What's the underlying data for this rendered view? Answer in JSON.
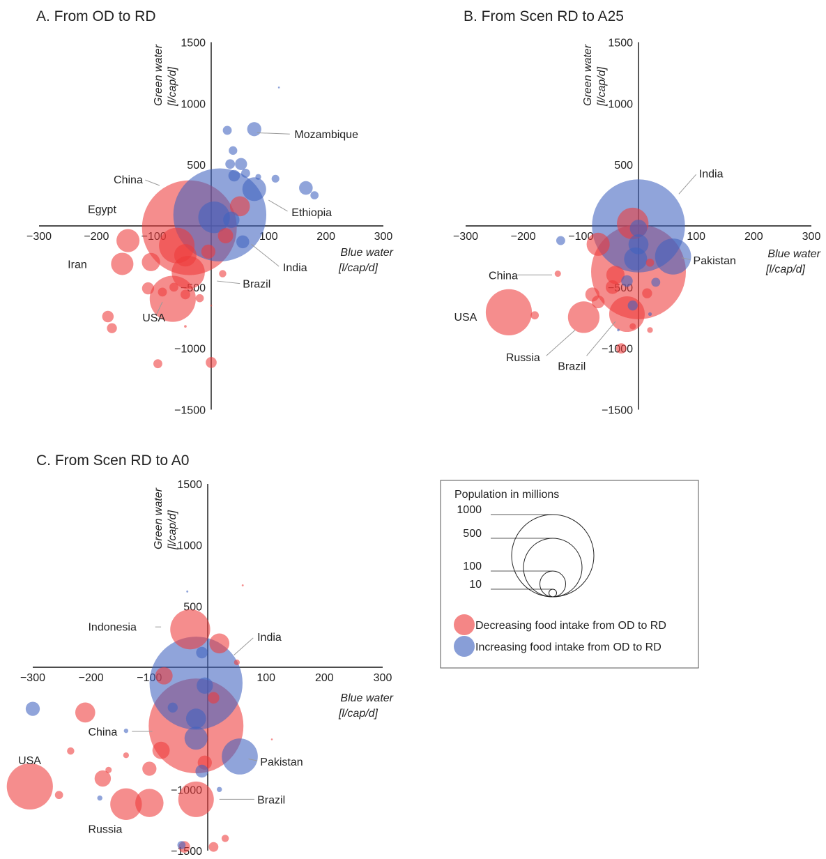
{
  "colors": {
    "decreasing": "#ee3b3b",
    "increasing": "#3f63bf",
    "axis": "#111111",
    "leader": "#9a9a9a"
  },
  "legend": {
    "title": "Population in millions",
    "sizes": [
      {
        "label": "1000",
        "value": 1000
      },
      {
        "label": "500",
        "value": 500
      },
      {
        "label": "100",
        "value": 100
      },
      {
        "label": "10",
        "value": 10
      }
    ],
    "decreasing_label": "Decreasing food intake from OD to RD",
    "increasing_label": "Increasing food intake from OD to RD"
  },
  "chart_data": [
    {
      "type": "scatter",
      "subtype": "bubble",
      "title": "A. From OD to RD",
      "xlabel": [
        "Blue water",
        "[l/cap/d]"
      ],
      "ylabel": [
        "Green water",
        "[l/cap/d]"
      ],
      "xlim": [
        -300,
        300
      ],
      "ylim": [
        -1500,
        1500
      ],
      "xticks": [
        -300,
        -200,
        -100,
        100,
        200,
        300
      ],
      "yticks": [
        1500,
        1000,
        500,
        -500,
        -1000,
        -1500
      ],
      "size_variable": "Population in millions",
      "points": [
        {
          "x": 15,
          "y": 90,
          "pop": 1300,
          "c": "increasing"
        },
        {
          "x": -38,
          "y": -15,
          "pop": 1350,
          "c": "decreasing"
        },
        {
          "x": -60,
          "y": -160,
          "pop": 190,
          "c": "decreasing"
        },
        {
          "x": -45,
          "y": -240,
          "pop": 75,
          "c": "decreasing"
        },
        {
          "x": -40,
          "y": -380,
          "pop": 165,
          "c": "decreasing"
        },
        {
          "x": -155,
          "y": -310,
          "pop": 75,
          "c": "decreasing"
        },
        {
          "x": -105,
          "y": -295,
          "pop": 50,
          "c": "decreasing"
        },
        {
          "x": -145,
          "y": -120,
          "pop": 80,
          "c": "decreasing"
        },
        {
          "x": -67,
          "y": -595,
          "pop": 320,
          "c": "decreasing"
        },
        {
          "x": -110,
          "y": -510,
          "pop": 22,
          "c": "decreasing"
        },
        {
          "x": -85,
          "y": -540,
          "pop": 12,
          "c": "decreasing"
        },
        {
          "x": -180,
          "y": -740,
          "pop": 20,
          "c": "decreasing"
        },
        {
          "x": -173,
          "y": -835,
          "pop": 15,
          "c": "decreasing"
        },
        {
          "x": -93,
          "y": -1125,
          "pop": 12,
          "c": "decreasing"
        },
        {
          "x": 0,
          "y": -1115,
          "pop": 18,
          "c": "decreasing"
        },
        {
          "x": -20,
          "y": -590,
          "pop": 10,
          "c": "decreasing"
        },
        {
          "x": -45,
          "y": -560,
          "pop": 14,
          "c": "decreasing"
        },
        {
          "x": -65,
          "y": -500,
          "pop": 12,
          "c": "decreasing"
        },
        {
          "x": -5,
          "y": -210,
          "pop": 30,
          "c": "decreasing"
        },
        {
          "x": 25,
          "y": -80,
          "pop": 35,
          "c": "decreasing"
        },
        {
          "x": 50,
          "y": 160,
          "pop": 60,
          "c": "decreasing"
        },
        {
          "x": 55,
          "y": -130,
          "pop": 25,
          "c": "increasing"
        },
        {
          "x": 35,
          "y": 50,
          "pop": 40,
          "c": "increasing"
        },
        {
          "x": 5,
          "y": 70,
          "pop": 150,
          "c": "increasing"
        },
        {
          "x": 75,
          "y": 300,
          "pop": 85,
          "c": "increasing"
        },
        {
          "x": 75,
          "y": 790,
          "pop": 30,
          "c": "increasing"
        },
        {
          "x": 28,
          "y": 780,
          "pop": 12,
          "c": "increasing"
        },
        {
          "x": 38,
          "y": 615,
          "pop": 11,
          "c": "increasing"
        },
        {
          "x": 33,
          "y": 505,
          "pop": 14,
          "c": "increasing"
        },
        {
          "x": 52,
          "y": 505,
          "pop": 22,
          "c": "increasing"
        },
        {
          "x": 60,
          "y": 430,
          "pop": 12,
          "c": "increasing"
        },
        {
          "x": 40,
          "y": 410,
          "pop": 20,
          "c": "increasing"
        },
        {
          "x": 82,
          "y": 400,
          "pop": 5,
          "c": "increasing"
        },
        {
          "x": 112,
          "y": 385,
          "pop": 9,
          "c": "increasing"
        },
        {
          "x": 165,
          "y": 310,
          "pop": 28,
          "c": "increasing"
        },
        {
          "x": 180,
          "y": 250,
          "pop": 10,
          "c": "increasing"
        },
        {
          "x": 118,
          "y": 1130,
          "pop": 0.5,
          "c": "increasing"
        },
        {
          "x": -45,
          "y": -820,
          "pop": 1,
          "c": "decreasing"
        },
        {
          "x": 0,
          "y": -650,
          "pop": 0.5,
          "c": "decreasing"
        },
        {
          "x": 20,
          "y": -390,
          "pop": 8,
          "c": "decreasing"
        }
      ],
      "annotations": [
        {
          "text": "Mozambique",
          "x": 145,
          "y": 750,
          "lx1": 80,
          "ly1": 760,
          "lx2": 137,
          "ly2": 750
        },
        {
          "text": "China",
          "x": -170,
          "y": 380,
          "lx1": -90,
          "ly1": 330,
          "lx2": -115,
          "ly2": 375
        },
        {
          "text": "Egypt",
          "x": -215,
          "y": 140
        },
        {
          "text": "Ethiopia",
          "x": 140,
          "y": 115,
          "lx1": 100,
          "ly1": 210,
          "lx2": 133,
          "ly2": 120
        },
        {
          "text": "India",
          "x": 125,
          "y": -335,
          "lx1": 70,
          "ly1": -150,
          "lx2": 118,
          "ly2": -330
        },
        {
          "text": "Iran",
          "x": -250,
          "y": -310
        },
        {
          "text": "Brazil",
          "x": 55,
          "y": -470,
          "lx1": 10,
          "ly1": -450,
          "lx2": 50,
          "ly2": -470
        },
        {
          "text": "USA",
          "x": -120,
          "y": -745,
          "lx1": -85,
          "ly1": -620,
          "lx2": -95,
          "ly2": -720
        }
      ]
    },
    {
      "type": "scatter",
      "subtype": "bubble",
      "title": "B. From Scen RD to A25",
      "xlabel": [
        "Blue water",
        "[l/cap/d]"
      ],
      "ylabel": [
        "Green water",
        "[l/cap/d]"
      ],
      "xlim": [
        -300,
        300
      ],
      "ylim": [
        -1500,
        1500
      ],
      "xticks": [
        -300,
        -200,
        -100,
        100,
        200,
        300
      ],
      "yticks": [
        1500,
        500,
        -500,
        -1000,
        -1500
      ],
      "ytick_labels_extra": [
        "1000"
      ],
      "size_variable": "Population in millions",
      "points": [
        {
          "x": 0,
          "y": 0,
          "pop": 1300,
          "c": "increasing"
        },
        {
          "x": 0,
          "y": -375,
          "pop": 1350,
          "c": "decreasing"
        },
        {
          "x": -20,
          "y": -720,
          "pop": 190,
          "c": "decreasing"
        },
        {
          "x": -95,
          "y": -745,
          "pop": 150,
          "c": "decreasing"
        },
        {
          "x": -225,
          "y": -705,
          "pop": 320,
          "c": "decreasing"
        },
        {
          "x": -180,
          "y": -730,
          "pop": 10,
          "c": "decreasing"
        },
        {
          "x": 60,
          "y": -250,
          "pop": 195,
          "c": "increasing"
        },
        {
          "x": -135,
          "y": -120,
          "pop": 12,
          "c": "increasing"
        },
        {
          "x": -70,
          "y": -150,
          "pop": 80,
          "c": "decreasing"
        },
        {
          "x": -140,
          "y": -390,
          "pop": 6,
          "c": "decreasing"
        },
        {
          "x": -80,
          "y": -560,
          "pop": 30,
          "c": "decreasing"
        },
        {
          "x": -70,
          "y": -620,
          "pop": 25,
          "c": "decreasing"
        },
        {
          "x": -45,
          "y": -500,
          "pop": 28,
          "c": "decreasing"
        },
        {
          "x": -40,
          "y": -400,
          "pop": 50,
          "c": "decreasing"
        },
        {
          "x": -30,
          "y": -1000,
          "pop": 16,
          "c": "decreasing"
        },
        {
          "x": 20,
          "y": -850,
          "pop": 5,
          "c": "decreasing"
        },
        {
          "x": -10,
          "y": -820,
          "pop": 6,
          "c": "decreasing"
        },
        {
          "x": 15,
          "y": -550,
          "pop": 15,
          "c": "decreasing"
        },
        {
          "x": 30,
          "y": -460,
          "pop": 12,
          "c": "increasing"
        },
        {
          "x": -5,
          "y": -270,
          "pop": 80,
          "c": "increasing"
        },
        {
          "x": 0,
          "y": -150,
          "pop": 60,
          "c": "increasing"
        },
        {
          "x": 0,
          "y": -20,
          "pop": 45,
          "c": "increasing"
        },
        {
          "x": -10,
          "y": 20,
          "pop": 150,
          "c": "decreasing"
        },
        {
          "x": -20,
          "y": -450,
          "pop": 20,
          "c": "increasing"
        },
        {
          "x": -10,
          "y": -650,
          "pop": 15,
          "c": "increasing"
        },
        {
          "x": 20,
          "y": -720,
          "pop": 2,
          "c": "increasing"
        },
        {
          "x": -35,
          "y": -850,
          "pop": 1,
          "c": "increasing"
        },
        {
          "x": 20,
          "y": -300,
          "pop": 10,
          "c": "decreasing"
        }
      ],
      "annotations": [
        {
          "text": "India",
          "x": 105,
          "y": 430,
          "lx1": 70,
          "ly1": 260,
          "lx2": 100,
          "ly2": 420
        },
        {
          "text": "Pakistan",
          "x": 95,
          "y": -280,
          "lx1": 75,
          "ly1": -260,
          "lx2": 90,
          "ly2": -275
        },
        {
          "text": "China",
          "x": -260,
          "y": -400,
          "lx1": -210,
          "ly1": -400,
          "lx2": -150,
          "ly2": -400
        },
        {
          "text": "USA",
          "x": -320,
          "y": -740
        },
        {
          "text": "Russia",
          "x": -230,
          "y": -1070,
          "lx1": -160,
          "ly1": -1060,
          "lx2": -110,
          "ly2": -850
        },
        {
          "text": "Brazil",
          "x": -140,
          "y": -1140,
          "lx1": -90,
          "ly1": -1060,
          "lx2": -40,
          "ly2": -780
        }
      ]
    },
    {
      "type": "scatter",
      "subtype": "bubble",
      "title": "C. From Scen RD to A0",
      "xlabel": [
        "Blue water",
        "[l/cap/d]"
      ],
      "ylabel": [
        "Green water",
        "[l/cap/d]"
      ],
      "xlim": [
        -300,
        300
      ],
      "ylim": [
        -1500,
        1500
      ],
      "xticks": [
        -300,
        -200,
        -100,
        100,
        200,
        300
      ],
      "yticks": [
        1500,
        1000,
        500,
        -1000,
        -1500
      ],
      "size_variable": "Population in millions",
      "points": [
        {
          "x": -20,
          "y": -130,
          "pop": 1300,
          "c": "increasing"
        },
        {
          "x": -20,
          "y": -480,
          "pop": 1350,
          "c": "decreasing"
        },
        {
          "x": -30,
          "y": 310,
          "pop": 240,
          "c": "decreasing"
        },
        {
          "x": 20,
          "y": 195,
          "pop": 60,
          "c": "decreasing"
        },
        {
          "x": -75,
          "y": -70,
          "pop": 45,
          "c": "decreasing"
        },
        {
          "x": -305,
          "y": -975,
          "pop": 320,
          "c": "decreasing"
        },
        {
          "x": -255,
          "y": -1045,
          "pop": 10,
          "c": "decreasing"
        },
        {
          "x": -140,
          "y": -1120,
          "pop": 150,
          "c": "decreasing"
        },
        {
          "x": -100,
          "y": -1110,
          "pop": 120,
          "c": "decreasing"
        },
        {
          "x": -180,
          "y": -910,
          "pop": 40,
          "c": "decreasing"
        },
        {
          "x": -210,
          "y": -370,
          "pop": 60,
          "c": "decreasing"
        },
        {
          "x": -300,
          "y": -340,
          "pop": 30,
          "c": "increasing"
        },
        {
          "x": 55,
          "y": -730,
          "pop": 195,
          "c": "increasing"
        },
        {
          "x": -20,
          "y": -1080,
          "pop": 190,
          "c": "decreasing"
        },
        {
          "x": -100,
          "y": -830,
          "pop": 30,
          "c": "decreasing"
        },
        {
          "x": -80,
          "y": -680,
          "pop": 45,
          "c": "decreasing"
        },
        {
          "x": -235,
          "y": -685,
          "pop": 8,
          "c": "decreasing"
        },
        {
          "x": -170,
          "y": -840,
          "pop": 6,
          "c": "decreasing"
        },
        {
          "x": -140,
          "y": -720,
          "pop": 5,
          "c": "decreasing"
        },
        {
          "x": -40,
          "y": -1470,
          "pop": 20,
          "c": "decreasing"
        },
        {
          "x": 10,
          "y": -1470,
          "pop": 14,
          "c": "decreasing"
        },
        {
          "x": 30,
          "y": -1400,
          "pop": 8,
          "c": "decreasing"
        },
        {
          "x": -5,
          "y": -780,
          "pop": 30,
          "c": "decreasing"
        },
        {
          "x": -10,
          "y": -850,
          "pop": 25,
          "c": "increasing"
        },
        {
          "x": -20,
          "y": -580,
          "pop": 80,
          "c": "increasing"
        },
        {
          "x": -20,
          "y": -420,
          "pop": 60,
          "c": "increasing"
        },
        {
          "x": -5,
          "y": -150,
          "pop": 40,
          "c": "increasing"
        },
        {
          "x": -10,
          "y": 120,
          "pop": 20,
          "c": "increasing"
        },
        {
          "x": 10,
          "y": -250,
          "pop": 20,
          "c": "decreasing"
        },
        {
          "x": 50,
          "y": 40,
          "pop": 5,
          "c": "decreasing"
        },
        {
          "x": -60,
          "y": -330,
          "pop": 15,
          "c": "increasing"
        },
        {
          "x": -140,
          "y": -520,
          "pop": 3,
          "c": "increasing"
        },
        {
          "x": 20,
          "y": -1000,
          "pop": 4,
          "c": "increasing"
        },
        {
          "x": -45,
          "y": -1455,
          "pop": 10,
          "c": "increasing"
        },
        {
          "x": 60,
          "y": 670,
          "pop": 0.6,
          "c": "decreasing"
        },
        {
          "x": -35,
          "y": 620,
          "pop": 0.6,
          "c": "increasing"
        },
        {
          "x": 110,
          "y": -590,
          "pop": 0.5,
          "c": "decreasing"
        },
        {
          "x": -185,
          "y": -1070,
          "pop": 4,
          "c": "increasing"
        }
      ],
      "annotations": [
        {
          "text": "Indonesia",
          "x": -205,
          "y": 335,
          "lx1": -90,
          "ly1": 330,
          "lx2": -80,
          "ly2": 330
        },
        {
          "text": "India",
          "x": 85,
          "y": 250,
          "lx1": 45,
          "ly1": 100,
          "lx2": 78,
          "ly2": 240
        },
        {
          "text": "China",
          "x": -205,
          "y": -525,
          "lx1": -130,
          "ly1": -525,
          "lx2": -95,
          "ly2": -525
        },
        {
          "text": "Pakistan",
          "x": 90,
          "y": -770,
          "lx1": 70,
          "ly1": -750,
          "lx2": 85,
          "ly2": -765
        },
        {
          "text": "USA",
          "x": -325,
          "y": -760
        },
        {
          "text": "Brazil",
          "x": 85,
          "y": -1080,
          "lx1": 20,
          "ly1": -1080,
          "lx2": 80,
          "ly2": -1080
        },
        {
          "text": "Russia",
          "x": -205,
          "y": -1320
        }
      ]
    }
  ]
}
